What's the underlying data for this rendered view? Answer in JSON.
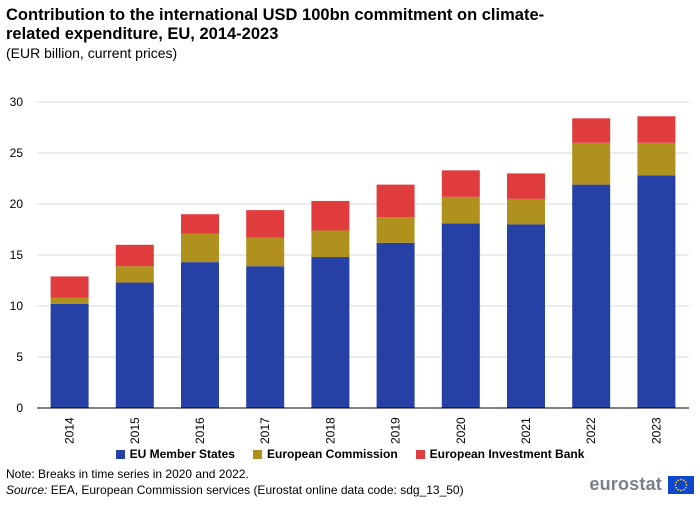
{
  "title": "Contribution to the international USD 100bn commitment on climate-related expenditure, EU, 2014-2023",
  "subtitle": "(EUR billion, current prices)",
  "chart_data": {
    "type": "stacked-bar",
    "title": "Contribution to the international USD 100bn commitment on climate-related expenditure, EU, 2014-2023",
    "subtitle": "(EUR billion, current prices)",
    "xlabel": "",
    "ylabel": "",
    "ylim": [
      0,
      30
    ],
    "yticks": [
      0,
      5,
      10,
      15,
      20,
      25,
      30
    ],
    "grid": true,
    "legend_position": "bottom",
    "categories": [
      "2014",
      "2015",
      "2016",
      "2017",
      "2018",
      "2019",
      "2020",
      "2021",
      "2022",
      "2023"
    ],
    "series": [
      {
        "name": "EU Member States",
        "color": "#2641a5",
        "values": [
          10.2,
          12.3,
          14.3,
          13.9,
          14.8,
          16.2,
          18.1,
          18.0,
          21.9,
          22.8
        ]
      },
      {
        "name": "European Commission",
        "color": "#b0911d",
        "values": [
          0.6,
          1.6,
          2.8,
          2.8,
          2.6,
          2.5,
          2.6,
          2.5,
          4.1,
          3.2
        ]
      },
      {
        "name": "European Investment Bank",
        "color": "#e03c3e",
        "values": [
          2.1,
          2.1,
          1.9,
          2.7,
          2.9,
          3.2,
          2.6,
          2.5,
          2.4,
          2.6
        ]
      }
    ]
  },
  "note": "Note: Breaks in time series in 2020 and 2022.",
  "source_label": "Source:",
  "source_text": " EEA, European Commission services (Eurostat online data code: sdg_13_50)",
  "logo_text": "eurostat",
  "flag_icon": "eu-flag-icon"
}
